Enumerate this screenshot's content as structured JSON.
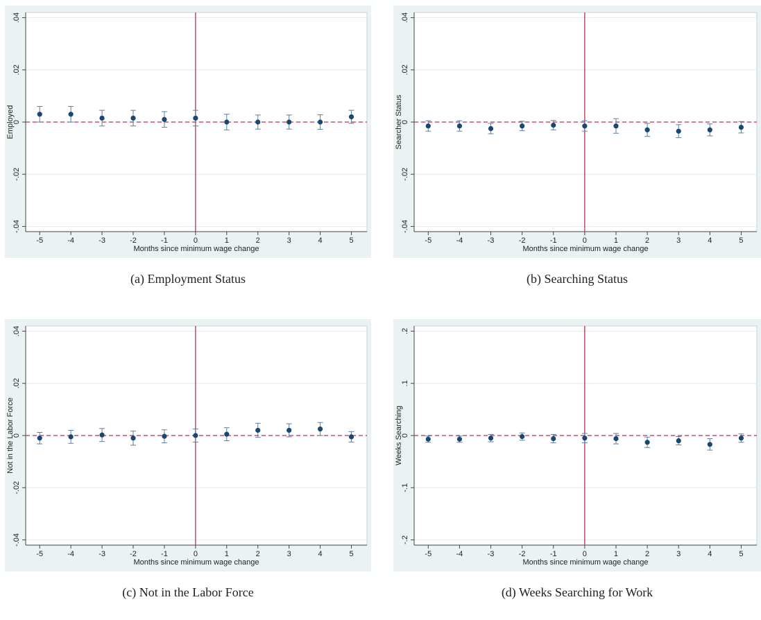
{
  "chart_data": [
    {
      "type": "scatter",
      "caption": "(a) Employment Status",
      "ylabel": "Employed",
      "xlabel": "Months since minimum wage change",
      "x": [
        -5,
        -4,
        -3,
        -2,
        -1,
        0,
        1,
        2,
        3,
        4,
        5
      ],
      "values": [
        0.003,
        0.003,
        0.0015,
        0.0015,
        0.001,
        0.0015,
        0.0,
        0.0,
        0.0,
        0.0,
        0.002
      ],
      "errors": [
        0.003,
        0.003,
        0.003,
        0.003,
        0.003,
        0.003,
        0.003,
        0.0027,
        0.0027,
        0.0028,
        0.0025
      ],
      "color": "#1a476f",
      "error_color": "#5a7fa3",
      "xlim": [
        -5.45,
        5.5
      ],
      "xticks": [
        -5,
        -4,
        -3,
        -2,
        -1,
        0,
        1,
        2,
        3,
        4,
        5
      ],
      "ylim": [
        -0.042,
        0.042
      ],
      "yticks": [
        {
          "value": -0.04,
          "label": "-.04"
        },
        {
          "value": -0.02,
          "label": "-.02"
        },
        0,
        {
          "value": 0.02,
          "label": ".02"
        },
        {
          "value": 0.04,
          "label": ".04"
        }
      ],
      "grid": true,
      "reference_x": 0,
      "reference_y": 0,
      "reference_color": "#b5305a"
    },
    {
      "type": "scatter",
      "caption": "(b) Searching Status",
      "ylabel": "Searcher Status",
      "xlabel": "Months since minimum wage change",
      "x": [
        -5,
        -4,
        -3,
        -2,
        -1,
        0,
        1,
        2,
        3,
        4,
        5
      ],
      "values": [
        -0.0015,
        -0.0015,
        -0.0025,
        -0.0015,
        -0.0012,
        -0.0015,
        -0.0015,
        -0.003,
        -0.0035,
        -0.003,
        -0.002
      ],
      "errors": [
        0.002,
        0.002,
        0.002,
        0.0018,
        0.0018,
        0.002,
        0.0028,
        0.0025,
        0.0025,
        0.0023,
        0.0022
      ],
      "color": "#1a476f",
      "error_color": "#5a7fa3",
      "xlim": [
        -5.45,
        5.5
      ],
      "xticks": [
        -5,
        -4,
        -3,
        -2,
        -1,
        0,
        1,
        2,
        3,
        4,
        5
      ],
      "ylim": [
        -0.042,
        0.042
      ],
      "yticks": [
        {
          "value": -0.04,
          "label": "-.04"
        },
        {
          "value": -0.02,
          "label": "-.02"
        },
        0,
        {
          "value": 0.02,
          "label": ".02"
        },
        {
          "value": 0.04,
          "label": ".04"
        }
      ],
      "grid": true,
      "reference_x": 0,
      "reference_y": 0,
      "reference_color": "#b5305a"
    },
    {
      "type": "scatter",
      "caption": "(c) Not in the Labor Force",
      "ylabel": "Not in the Labor Force",
      "xlabel": "Months since minimum wage change",
      "x": [
        -5,
        -4,
        -3,
        -2,
        -1,
        0,
        1,
        2,
        3,
        4,
        5
      ],
      "values": [
        -0.001,
        -0.0005,
        0.0002,
        -0.001,
        -0.0003,
        0.0,
        0.0005,
        0.002,
        0.002,
        0.0025,
        -0.0005
      ],
      "errors": [
        0.0022,
        0.0025,
        0.0025,
        0.0027,
        0.0025,
        0.0025,
        0.0025,
        0.0027,
        0.0025,
        0.0025,
        0.002
      ],
      "color": "#1a476f",
      "error_color": "#5a7fa3",
      "xlim": [
        -5.45,
        5.5
      ],
      "xticks": [
        -5,
        -4,
        -3,
        -2,
        -1,
        0,
        1,
        2,
        3,
        4,
        5
      ],
      "ylim": [
        -0.042,
        0.042
      ],
      "yticks": [
        {
          "value": -0.04,
          "label": "-.04"
        },
        {
          "value": -0.02,
          "label": "-.02"
        },
        0,
        {
          "value": 0.02,
          "label": ".02"
        },
        {
          "value": 0.04,
          "label": ".04"
        }
      ],
      "grid": true,
      "reference_x": 0,
      "reference_y": 0,
      "reference_color": "#b5305a"
    },
    {
      "type": "scatter",
      "caption": "(d) Weeks Searching for Work",
      "ylabel": "Weeks Searching",
      "xlabel": "Months since minimum wage change",
      "x": [
        -5,
        -4,
        -3,
        -2,
        -1,
        0,
        1,
        2,
        3,
        4,
        5
      ],
      "values": [
        -0.007,
        -0.007,
        -0.005,
        -0.002,
        -0.006,
        -0.005,
        -0.006,
        -0.013,
        -0.01,
        -0.017,
        -0.005
      ],
      "errors": [
        0.006,
        0.006,
        0.007,
        0.007,
        0.008,
        0.009,
        0.01,
        0.01,
        0.008,
        0.011,
        0.008
      ],
      "color": "#1a476f",
      "error_color": "#5a7fa3",
      "xlim": [
        -5.45,
        5.5
      ],
      "xticks": [
        -5,
        -4,
        -3,
        -2,
        -1,
        0,
        1,
        2,
        3,
        4,
        5
      ],
      "ylim": [
        -0.21,
        0.21
      ],
      "yticks": [
        {
          "value": -0.2,
          "label": "-.2"
        },
        {
          "value": -0.1,
          "label": "-.1"
        },
        0,
        {
          "value": 0.1,
          "label": ".1"
        },
        {
          "value": 0.2,
          "label": ".2"
        }
      ],
      "grid": true,
      "reference_x": 0,
      "reference_y": 0,
      "reference_color": "#b5305a"
    }
  ]
}
